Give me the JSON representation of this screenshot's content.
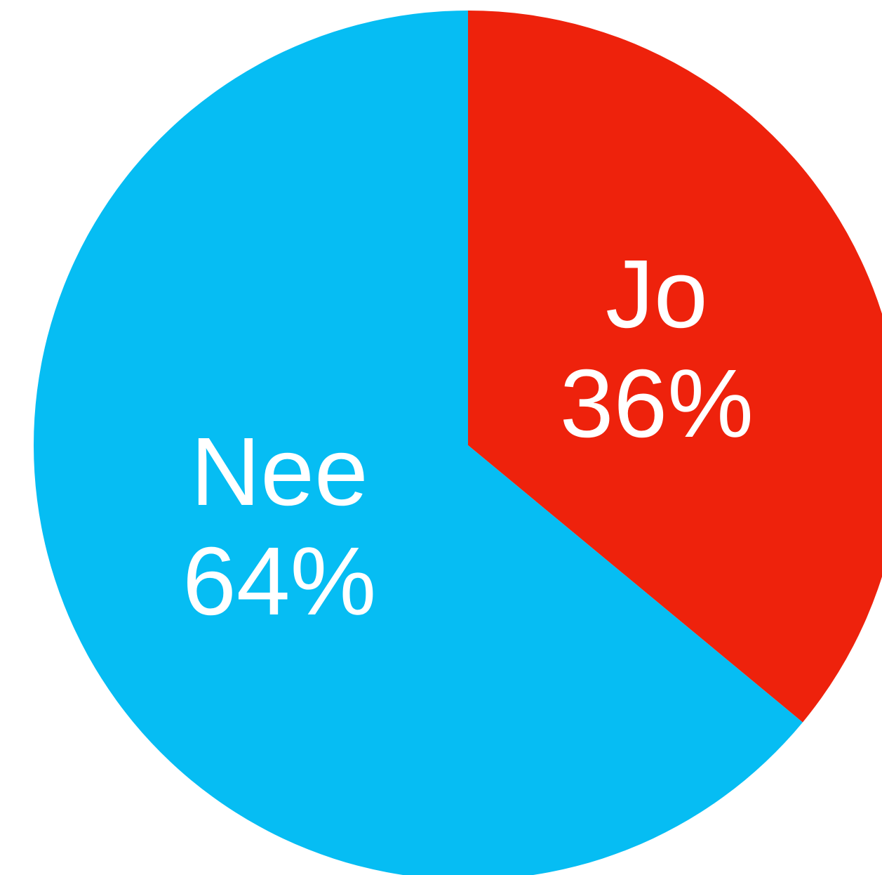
{
  "chart_data": {
    "type": "pie",
    "categories": [
      "Jo",
      "Nee"
    ],
    "values": [
      36,
      64
    ],
    "value_labels": [
      "36%",
      "64%"
    ],
    "colors": [
      "#ee220c",
      "#06bdf3"
    ]
  }
}
